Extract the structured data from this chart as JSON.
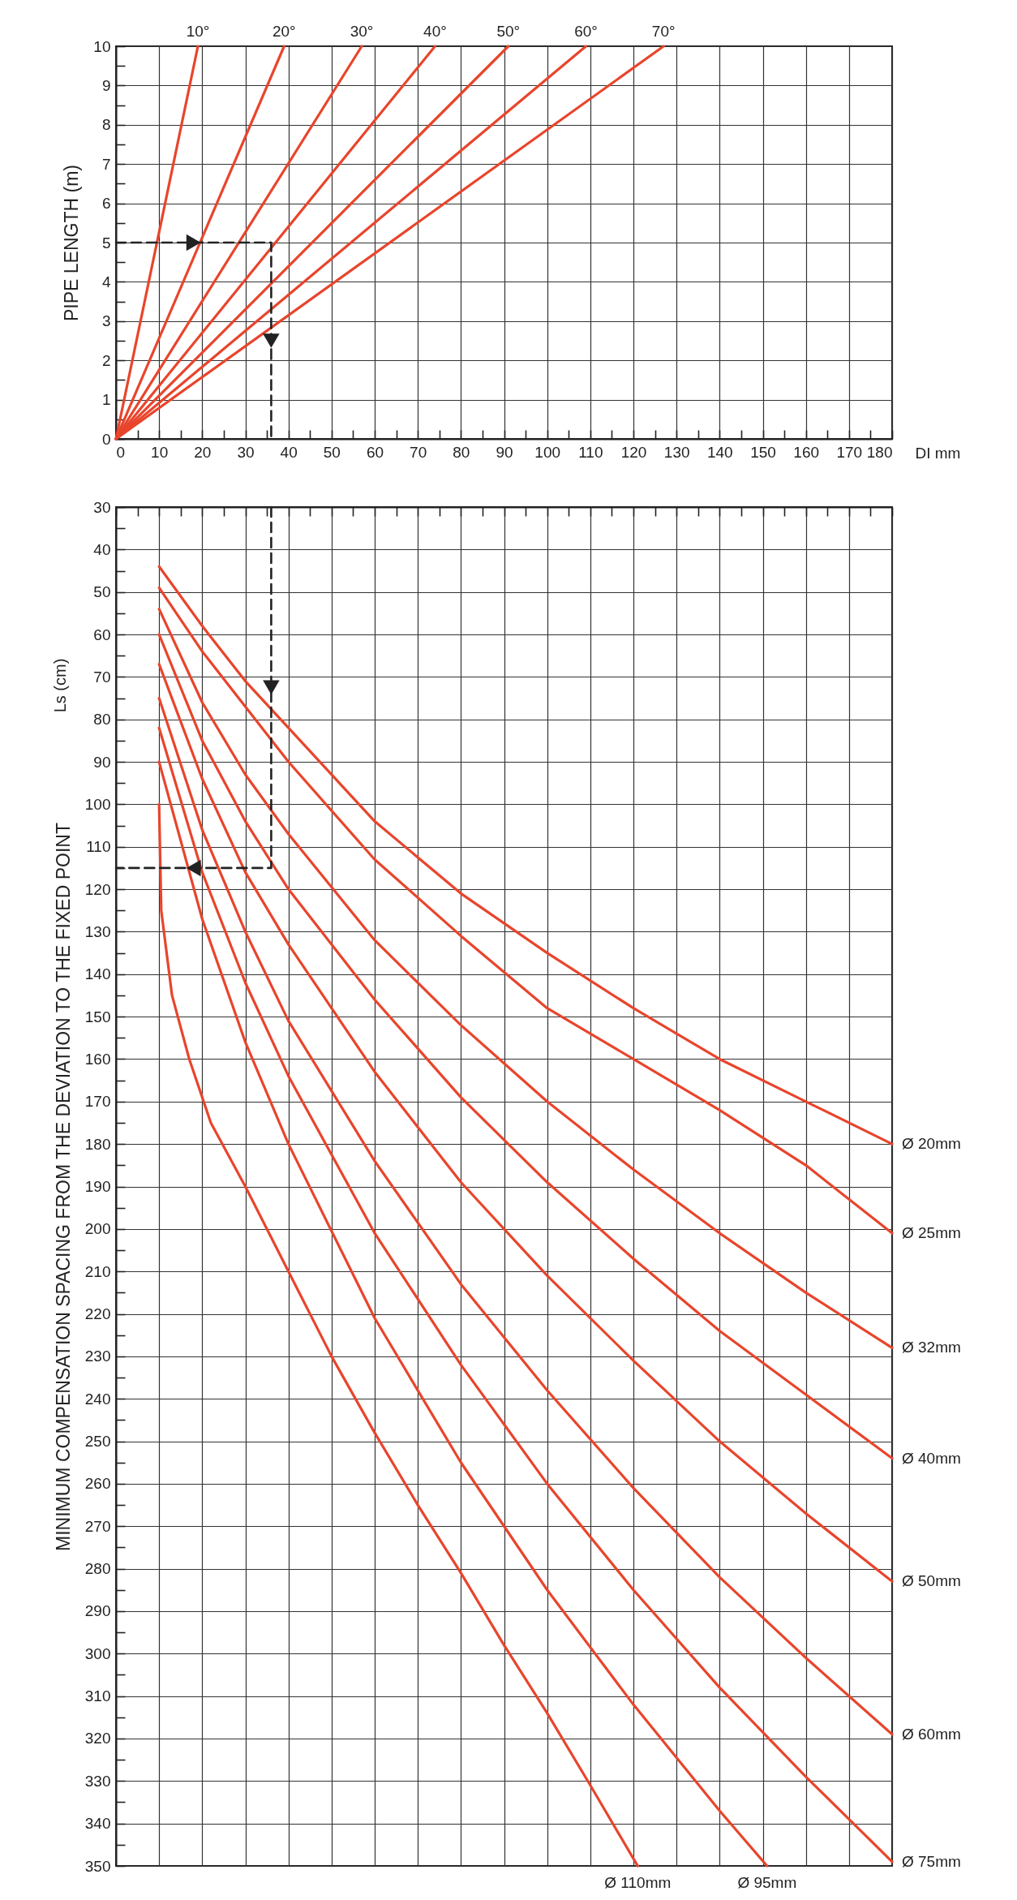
{
  "chart_data": [
    {
      "type": "line",
      "ylabel": "PIPE LENGTH (m)",
      "xlabel": "DI mm",
      "xlim": [
        0,
        180
      ],
      "ylim": [
        0,
        10
      ],
      "grid": true,
      "xticks": [
        0,
        {
          "value": 5,
          "label": null
        },
        10,
        {
          "value": 15,
          "label": null
        },
        20,
        {
          "value": 25,
          "label": null
        },
        30,
        {
          "value": 35,
          "label": null
        },
        40,
        {
          "value": 45,
          "label": null
        },
        50,
        {
          "value": 55,
          "label": null
        },
        60,
        {
          "value": 65,
          "label": null
        },
        70,
        {
          "value": 75,
          "label": null
        },
        80,
        {
          "value": 85,
          "label": null
        },
        90,
        {
          "value": 95,
          "label": null
        },
        100,
        {
          "value": 105,
          "label": null
        },
        110,
        {
          "value": 115,
          "label": null
        },
        120,
        {
          "value": 125,
          "label": null
        },
        130,
        {
          "value": 135,
          "label": null
        },
        140,
        {
          "value": 145,
          "label": null
        },
        150,
        {
          "value": 155,
          "label": null
        },
        160,
        {
          "value": 165,
          "label": null
        },
        170,
        {
          "value": 175,
          "label": null
        },
        180
      ],
      "yticks": [
        0,
        {
          "value": 0.5,
          "label": null
        },
        1,
        {
          "value": 1.5,
          "label": null
        },
        2,
        {
          "value": 2.5,
          "label": null
        },
        3,
        {
          "value": 3.5,
          "label": null
        },
        4,
        {
          "value": 4.5,
          "label": null
        },
        5,
        {
          "value": 5.5,
          "label": null
        },
        6,
        {
          "value": 6.5,
          "label": null
        },
        7,
        {
          "value": 7.5,
          "label": null
        },
        8,
        {
          "value": 8.5,
          "label": null
        },
        9,
        {
          "value": 9.5,
          "label": null
        },
        10
      ],
      "series": [
        {
          "name": "10°",
          "color": "#e8452c",
          "x": [
            0,
            19
          ],
          "values": [
            0,
            10
          ]
        },
        {
          "name": "20°",
          "color": "#e8452c",
          "x": [
            0,
            39
          ],
          "values": [
            0,
            10
          ]
        },
        {
          "name": "30°",
          "color": "#e8452c",
          "x": [
            0,
            57
          ],
          "values": [
            0,
            10
          ]
        },
        {
          "name": "40°",
          "color": "#e8452c",
          "x": [
            0,
            74
          ],
          "values": [
            0,
            10
          ]
        },
        {
          "name": "50°",
          "color": "#e8452c",
          "x": [
            0,
            91
          ],
          "values": [
            0,
            10
          ]
        },
        {
          "name": "60°",
          "color": "#e8452c",
          "x": [
            0,
            109
          ],
          "values": [
            0,
            10
          ]
        },
        {
          "name": "70°",
          "color": "#e8452c",
          "x": [
            0,
            127
          ],
          "values": [
            0,
            10
          ]
        },
        {
          "color": "#222222",
          "line_style": "dashed",
          "x": [
            0,
            36,
            36
          ],
          "values": [
            5,
            5,
            0
          ]
        }
      ]
    },
    {
      "type": "line",
      "ylabel": "MINIMUM COMPENSATION SPACING FROM THE DEVIATION TO THE FIXED POINT",
      "annotations": [
        "Ls (cm)"
      ],
      "xlim": [
        0,
        180
      ],
      "ylim": [
        350,
        30
      ],
      "grid": true,
      "tick_labels": "y",
      "xticks": [
        0,
        {
          "value": 5,
          "label": null
        },
        10,
        {
          "value": 15,
          "label": null
        },
        20,
        {
          "value": 25,
          "label": null
        },
        30,
        {
          "value": 35,
          "label": null
        },
        40,
        {
          "value": 45,
          "label": null
        },
        50,
        {
          "value": 55,
          "label": null
        },
        60,
        {
          "value": 65,
          "label": null
        },
        70,
        {
          "value": 75,
          "label": null
        },
        80,
        {
          "value": 85,
          "label": null
        },
        90,
        {
          "value": 95,
          "label": null
        },
        100,
        {
          "value": 105,
          "label": null
        },
        110,
        {
          "value": 115,
          "label": null
        },
        120,
        {
          "value": 125,
          "label": null
        },
        130,
        {
          "value": 135,
          "label": null
        },
        140,
        {
          "value": 145,
          "label": null
        },
        150,
        {
          "value": 155,
          "label": null
        },
        160,
        {
          "value": 165,
          "label": null
        },
        170,
        {
          "value": 175,
          "label": null
        },
        180
      ],
      "yticks": [
        30,
        {
          "value": 35,
          "label": null
        },
        40,
        {
          "value": 45,
          "label": null
        },
        50,
        {
          "value": 55,
          "label": null
        },
        60,
        {
          "value": 65,
          "label": null
        },
        70,
        {
          "value": 75,
          "label": null
        },
        80,
        {
          "value": 85,
          "label": null
        },
        90,
        {
          "value": 95,
          "label": null
        },
        100,
        {
          "value": 105,
          "label": null
        },
        110,
        {
          "value": 115,
          "label": null
        },
        120,
        {
          "value": 125,
          "label": null
        },
        130,
        {
          "value": 135,
          "label": null
        },
        140,
        {
          "value": 145,
          "label": null
        },
        150,
        {
          "value": 155,
          "label": null
        },
        160,
        {
          "value": 165,
          "label": null
        },
        170,
        {
          "value": 175,
          "label": null
        },
        180,
        {
          "value": 185,
          "label": null
        },
        190,
        {
          "value": 195,
          "label": null
        },
        200,
        {
          "value": 205,
          "label": null
        },
        210,
        {
          "value": 215,
          "label": null
        },
        220,
        {
          "value": 225,
          "label": null
        },
        230,
        {
          "value": 235,
          "label": null
        },
        240,
        {
          "value": 245,
          "label": null
        },
        250,
        {
          "value": 255,
          "label": null
        },
        260,
        {
          "value": 265,
          "label": null
        },
        270,
        {
          "value": 275,
          "label": null
        },
        280,
        {
          "value": 285,
          "label": null
        },
        290,
        {
          "value": 295,
          "label": null
        },
        300,
        {
          "value": 305,
          "label": null
        },
        310,
        {
          "value": 315,
          "label": null
        },
        320,
        {
          "value": 325,
          "label": null
        },
        330,
        {
          "value": 335,
          "label": null
        },
        340,
        {
          "value": 345,
          "label": null
        },
        350
      ],
      "series": [
        {
          "name": "Ø 20mm",
          "color": "#e8452c",
          "x": [
            10,
            20,
            30,
            40,
            60,
            80,
            100,
            120,
            140,
            160,
            180
          ],
          "values": [
            44,
            58,
            71,
            82,
            104,
            121,
            135,
            148,
            160,
            170,
            180
          ]
        },
        {
          "name": "Ø 25mm",
          "color": "#e8452c",
          "x": [
            10,
            20,
            30,
            40,
            60,
            80,
            100,
            120,
            140,
            160,
            180
          ],
          "values": [
            49,
            64,
            77,
            90,
            113,
            131,
            148,
            160,
            172,
            185,
            201
          ]
        },
        {
          "name": "Ø 32mm",
          "color": "#e8452c",
          "x": [
            10,
            20,
            30,
            40,
            60,
            80,
            100,
            120,
            140,
            160,
            180
          ],
          "values": [
            54,
            76,
            93,
            107,
            132,
            152,
            170,
            186,
            201,
            215,
            228
          ]
        },
        {
          "name": "Ø 40mm",
          "color": "#e8452c",
          "x": [
            10,
            20,
            30,
            40,
            60,
            80,
            100,
            120,
            140,
            160,
            180
          ],
          "values": [
            60,
            85,
            104,
            120,
            146,
            169,
            189,
            207,
            224,
            239,
            254
          ]
        },
        {
          "name": "Ø 50mm",
          "color": "#e8452c",
          "x": [
            10,
            20,
            30,
            40,
            60,
            80,
            100,
            120,
            140,
            160,
            180
          ],
          "values": [
            67,
            94,
            116,
            133,
            163,
            189,
            211,
            231,
            250,
            267,
            283
          ]
        },
        {
          "name": "Ø 60mm",
          "color": "#e8452c",
          "x": [
            10,
            20,
            30,
            40,
            60,
            80,
            100,
            120,
            140,
            160,
            180
          ],
          "values": [
            75,
            106,
            130,
            151,
            184,
            213,
            238,
            261,
            282,
            301,
            319
          ]
        },
        {
          "name": "Ø 75mm",
          "color": "#e8452c",
          "x": [
            10,
            20,
            30,
            40,
            60,
            80,
            100,
            120,
            140,
            160,
            180
          ],
          "values": [
            82,
            116,
            142,
            164,
            201,
            232,
            260,
            285,
            308,
            329,
            349
          ]
        },
        {
          "name": "Ø 95mm",
          "color": "#e8452c",
          "x": [
            10,
            20,
            30,
            40,
            60,
            80,
            100,
            120,
            140,
            151
          ],
          "values": [
            90,
            127,
            156,
            180,
            221,
            255,
            285,
            312,
            337,
            350
          ]
        },
        {
          "name": "Ø 110mm",
          "color": "#e8452c",
          "x": [
            10,
            10.5,
            13,
            17,
            22,
            30,
            40,
            50,
            60,
            70,
            80,
            90,
            100,
            110,
            121
          ],
          "values": [
            100,
            125,
            145,
            160,
            175,
            190,
            210,
            230,
            248,
            265,
            281,
            298,
            314,
            331,
            350
          ]
        },
        {
          "color": "#222222",
          "line_style": "dashed",
          "x": [
            36,
            36,
            0
          ],
          "values": [
            30,
            115,
            115
          ]
        }
      ]
    }
  ]
}
